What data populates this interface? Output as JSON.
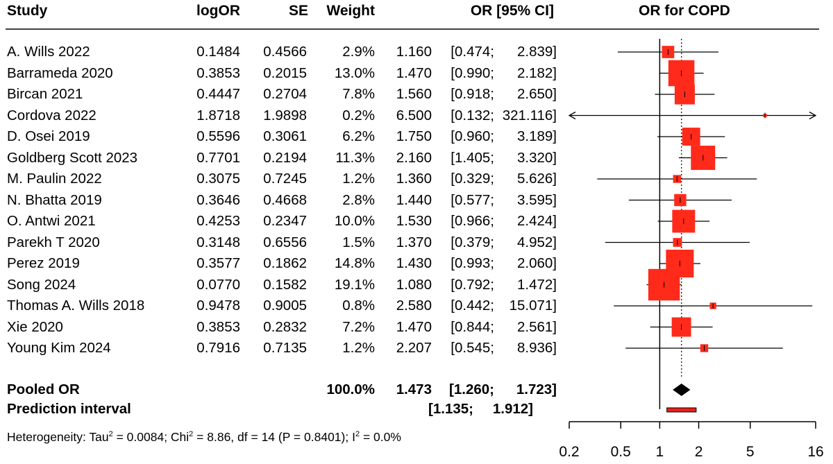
{
  "headers": {
    "study": "Study",
    "logor": "logOR",
    "se": "SE",
    "weight": "Weight",
    "orci": "OR [95% CI]",
    "plot_title": "OR for COPD"
  },
  "studies": [
    {
      "name": "A. Wills 2022",
      "logor": "0.1484",
      "se": "0.4566",
      "weight": "2.9%",
      "or": "1.160",
      "lo": "[0.474;",
      "hi": "2.839]"
    },
    {
      "name": "Barrameda 2020",
      "logor": "0.3853",
      "se": "0.2015",
      "weight": "13.0%",
      "or": "1.470",
      "lo": "[0.990;",
      "hi": "2.182]"
    },
    {
      "name": "Bircan 2021",
      "logor": "0.4447",
      "se": "0.2704",
      "weight": "7.8%",
      "or": "1.560",
      "lo": "[0.918;",
      "hi": "2.650]"
    },
    {
      "name": "Cordova 2022",
      "logor": "1.8718",
      "se": "1.9898",
      "weight": "0.2%",
      "or": "6.500",
      "lo": "[0.132;",
      "hi": "321.116]"
    },
    {
      "name": "D. Osei 2019",
      "logor": "0.5596",
      "se": "0.3061",
      "weight": "6.2%",
      "or": "1.750",
      "lo": "[0.960;",
      "hi": "3.189]"
    },
    {
      "name": "Goldberg Scott 2023",
      "logor": "0.7701",
      "se": "0.2194",
      "weight": "11.3%",
      "or": "2.160",
      "lo": "[1.405;",
      "hi": "3.320]"
    },
    {
      "name": "M. Paulin 2022",
      "logor": "0.3075",
      "se": "0.7245",
      "weight": "1.2%",
      "or": "1.360",
      "lo": "[0.329;",
      "hi": "5.626]"
    },
    {
      "name": "N. Bhatta 2019",
      "logor": "0.3646",
      "se": "0.4668",
      "weight": "2.8%",
      "or": "1.440",
      "lo": "[0.577;",
      "hi": "3.595]"
    },
    {
      "name": "O. Antwi 2021",
      "logor": "0.4253",
      "se": "0.2347",
      "weight": "10.0%",
      "or": "1.530",
      "lo": "[0.966;",
      "hi": "2.424]"
    },
    {
      "name": "Parekh T 2020",
      "logor": "0.3148",
      "se": "0.6556",
      "weight": "1.5%",
      "or": "1.370",
      "lo": "[0.379;",
      "hi": "4.952]"
    },
    {
      "name": "Perez 2019",
      "logor": "0.3577",
      "se": "0.1862",
      "weight": "14.8%",
      "or": "1.430",
      "lo": "[0.993;",
      "hi": "2.060]"
    },
    {
      "name": "Song 2024",
      "logor": "0.0770",
      "se": "0.1582",
      "weight": "19.1%",
      "or": "1.080",
      "lo": "[0.792;",
      "hi": "1.472]"
    },
    {
      "name": "Thomas A. Wills 2018",
      "logor": "0.9478",
      "se": "0.9005",
      "weight": "0.8%",
      "or": "2.580",
      "lo": "[0.442;",
      "hi": "15.071]"
    },
    {
      "name": "Xie 2020",
      "logor": "0.3853",
      "se": "0.2832",
      "weight": "7.2%",
      "or": "1.470",
      "lo": "[0.844;",
      "hi": "2.561]"
    },
    {
      "name": "Young Kim 2024",
      "logor": "0.7916",
      "se": "0.7135",
      "weight": "1.2%",
      "or": "2.207",
      "lo": "[0.545;",
      "hi": "8.936]"
    }
  ],
  "pooled": {
    "label": "Pooled OR",
    "weight": "100.0%",
    "or": "1.473",
    "lo": "[1.260;",
    "hi": "1.723]"
  },
  "prediction": {
    "label": "Prediction interval",
    "lo": "[1.135;",
    "hi": "1.912]"
  },
  "heterogeneity": {
    "prefix": "Heterogeneity: Tau",
    "tau_sup": "2",
    "tau_val": " = 0.0084; Chi",
    "chi_sup": "2",
    "chi_val": " = 8.86, df = 14 (P = 0.8401); I",
    "i_sup": "2",
    "i_val": " = 0.0%"
  },
  "colors": {
    "box": "#ff2a1a",
    "diamond": "#000000",
    "prediction": "#e8221a",
    "line": "#000000"
  },
  "chart_data": {
    "type": "forest",
    "title": "OR for COPD",
    "x_scale": "log",
    "xlim": [
      0.2,
      16
    ],
    "x_ticks": [
      "0.2",
      "0.5",
      "1",
      "2",
      "5",
      "16"
    ],
    "reference_line": 1,
    "pooled_line": 1.473,
    "studies": [
      {
        "name": "A. Wills 2022",
        "or": 1.16,
        "lo": 0.474,
        "hi": 2.839,
        "weight": 2.9
      },
      {
        "name": "Barrameda 2020",
        "or": 1.47,
        "lo": 0.99,
        "hi": 2.182,
        "weight": 13.0
      },
      {
        "name": "Bircan 2021",
        "or": 1.56,
        "lo": 0.918,
        "hi": 2.65,
        "weight": 7.8
      },
      {
        "name": "Cordova 2022",
        "or": 6.5,
        "lo": 0.132,
        "hi": 321.116,
        "weight": 0.2
      },
      {
        "name": "D. Osei 2019",
        "or": 1.75,
        "lo": 0.96,
        "hi": 3.189,
        "weight": 6.2
      },
      {
        "name": "Goldberg Scott 2023",
        "or": 2.16,
        "lo": 1.405,
        "hi": 3.32,
        "weight": 11.3
      },
      {
        "name": "M. Paulin 2022",
        "or": 1.36,
        "lo": 0.329,
        "hi": 5.626,
        "weight": 1.2
      },
      {
        "name": "N. Bhatta 2019",
        "or": 1.44,
        "lo": 0.577,
        "hi": 3.595,
        "weight": 2.8
      },
      {
        "name": "O. Antwi 2021",
        "or": 1.53,
        "lo": 0.966,
        "hi": 2.424,
        "weight": 10.0
      },
      {
        "name": "Parekh T 2020",
        "or": 1.37,
        "lo": 0.379,
        "hi": 4.952,
        "weight": 1.5
      },
      {
        "name": "Perez 2019",
        "or": 1.43,
        "lo": 0.993,
        "hi": 2.06,
        "weight": 14.8
      },
      {
        "name": "Song 2024",
        "or": 1.08,
        "lo": 0.792,
        "hi": 1.472,
        "weight": 19.1
      },
      {
        "name": "Thomas A. Wills 2018",
        "or": 2.58,
        "lo": 0.442,
        "hi": 15.071,
        "weight": 0.8
      },
      {
        "name": "Xie 2020",
        "or": 1.47,
        "lo": 0.844,
        "hi": 2.561,
        "weight": 7.2
      },
      {
        "name": "Young Kim 2024",
        "or": 2.207,
        "lo": 0.545,
        "hi": 8.936,
        "weight": 1.2
      }
    ],
    "pooled": {
      "or": 1.473,
      "lo": 1.26,
      "hi": 1.723
    },
    "prediction_interval": {
      "lo": 1.135,
      "hi": 1.912
    }
  }
}
